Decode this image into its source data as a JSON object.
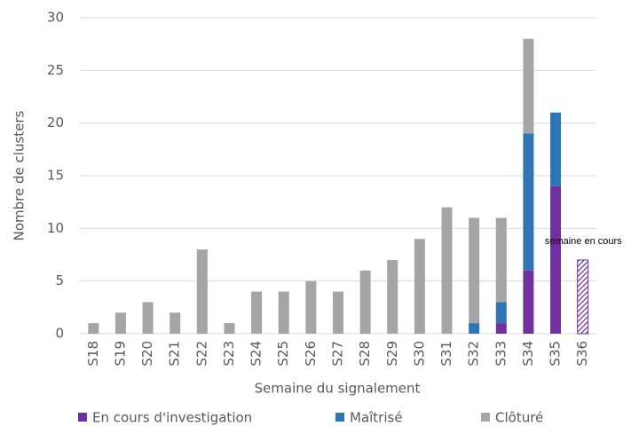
{
  "chart_data": {
    "type": "stacked_bar",
    "x_label": "Semaine du signalement",
    "y_label": "Nombre de clusters",
    "categories": [
      "S18",
      "S19",
      "S20",
      "S21",
      "S22",
      "S23",
      "S24",
      "S25",
      "S26",
      "S27",
      "S28",
      "S29",
      "S30",
      "S31",
      "S32",
      "S33",
      "S34",
      "S35",
      "S36"
    ],
    "series": [
      {
        "name": "En cours d'investigation",
        "color": "#7030a0",
        "values": [
          0,
          0,
          0,
          0,
          0,
          0,
          0,
          0,
          0,
          0,
          0,
          0,
          0,
          0,
          0,
          1,
          6,
          14,
          7
        ]
      },
      {
        "name": "Maîtrisé",
        "color": "#2e75b6",
        "values": [
          0,
          0,
          0,
          0,
          0,
          0,
          0,
          0,
          0,
          0,
          0,
          0,
          0,
          0,
          1,
          2,
          13,
          7,
          0
        ]
      },
      {
        "name": "Clôturé",
        "color": "#a5a5a5",
        "values": [
          1,
          2,
          3,
          2,
          8,
          1,
          4,
          4,
          5,
          4,
          6,
          7,
          9,
          12,
          10,
          8,
          9,
          0,
          0
        ]
      }
    ],
    "annotations": [
      {
        "text": "semaine en cours",
        "category": "S36"
      }
    ],
    "ylim": [
      0,
      30
    ],
    "yticks": [
      0,
      5,
      10,
      15,
      20,
      25,
      30
    ],
    "grid": true,
    "legend": "bottom"
  }
}
